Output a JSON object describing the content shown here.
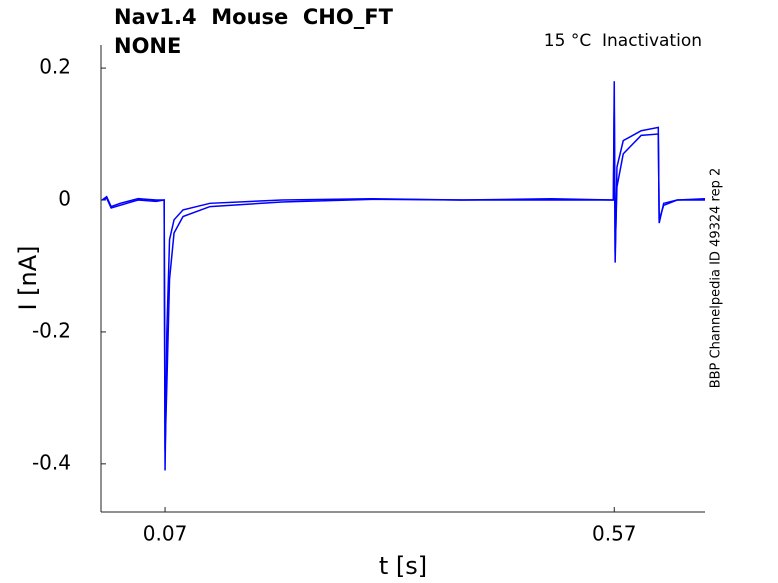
{
  "chart_data": {
    "type": "line",
    "title": "Nav1.4  Mouse  CHO_FT",
    "subtitle": "NONE",
    "annotation": "15 °C  Inactivation",
    "side_note": "BBP Channelpedia ID 49324 rep 2",
    "x_label": "t [s]",
    "y_label": "I [nA]",
    "x": [
      0,
      0.005,
      0.01,
      0.02,
      0.04,
      0.06,
      0.069,
      0.07,
      0.072,
      0.075,
      0.08,
      0.09,
      0.12,
      0.2,
      0.3,
      0.4,
      0.5,
      0.569,
      0.57,
      0.571,
      0.573,
      0.58,
      0.6,
      0.619,
      0.62,
      0.625,
      0.64,
      0.671
    ],
    "series": [
      {
        "color": "#0000ff",
        "values": [
          0,
          0.005,
          -0.01,
          -0.005,
          0.002,
          0,
          0,
          -0.41,
          -0.2,
          -0.06,
          -0.03,
          -0.015,
          -0.005,
          0,
          0.002,
          0,
          0,
          0,
          0.18,
          -0.095,
          0.05,
          0.09,
          0.105,
          0.11,
          -0.035,
          -0.005,
          0,
          0
        ]
      },
      {
        "color": "#0000ff",
        "values": [
          0,
          0.003,
          -0.012,
          -0.008,
          0,
          -0.002,
          0,
          -0.38,
          -0.28,
          -0.12,
          -0.05,
          -0.025,
          -0.01,
          -0.003,
          0.001,
          0,
          0.002,
          0,
          0.14,
          -0.08,
          0.02,
          0.07,
          0.098,
          0.1,
          -0.03,
          -0.008,
          0,
          0.002
        ]
      }
    ],
    "xlim": [
      -0.0013,
      0.671
    ],
    "ylim": [
      -0.473,
      0.235
    ],
    "xticks": [
      0.07,
      0.57
    ],
    "yticks": [
      -0.4,
      -0.2,
      0,
      0.2
    ]
  }
}
